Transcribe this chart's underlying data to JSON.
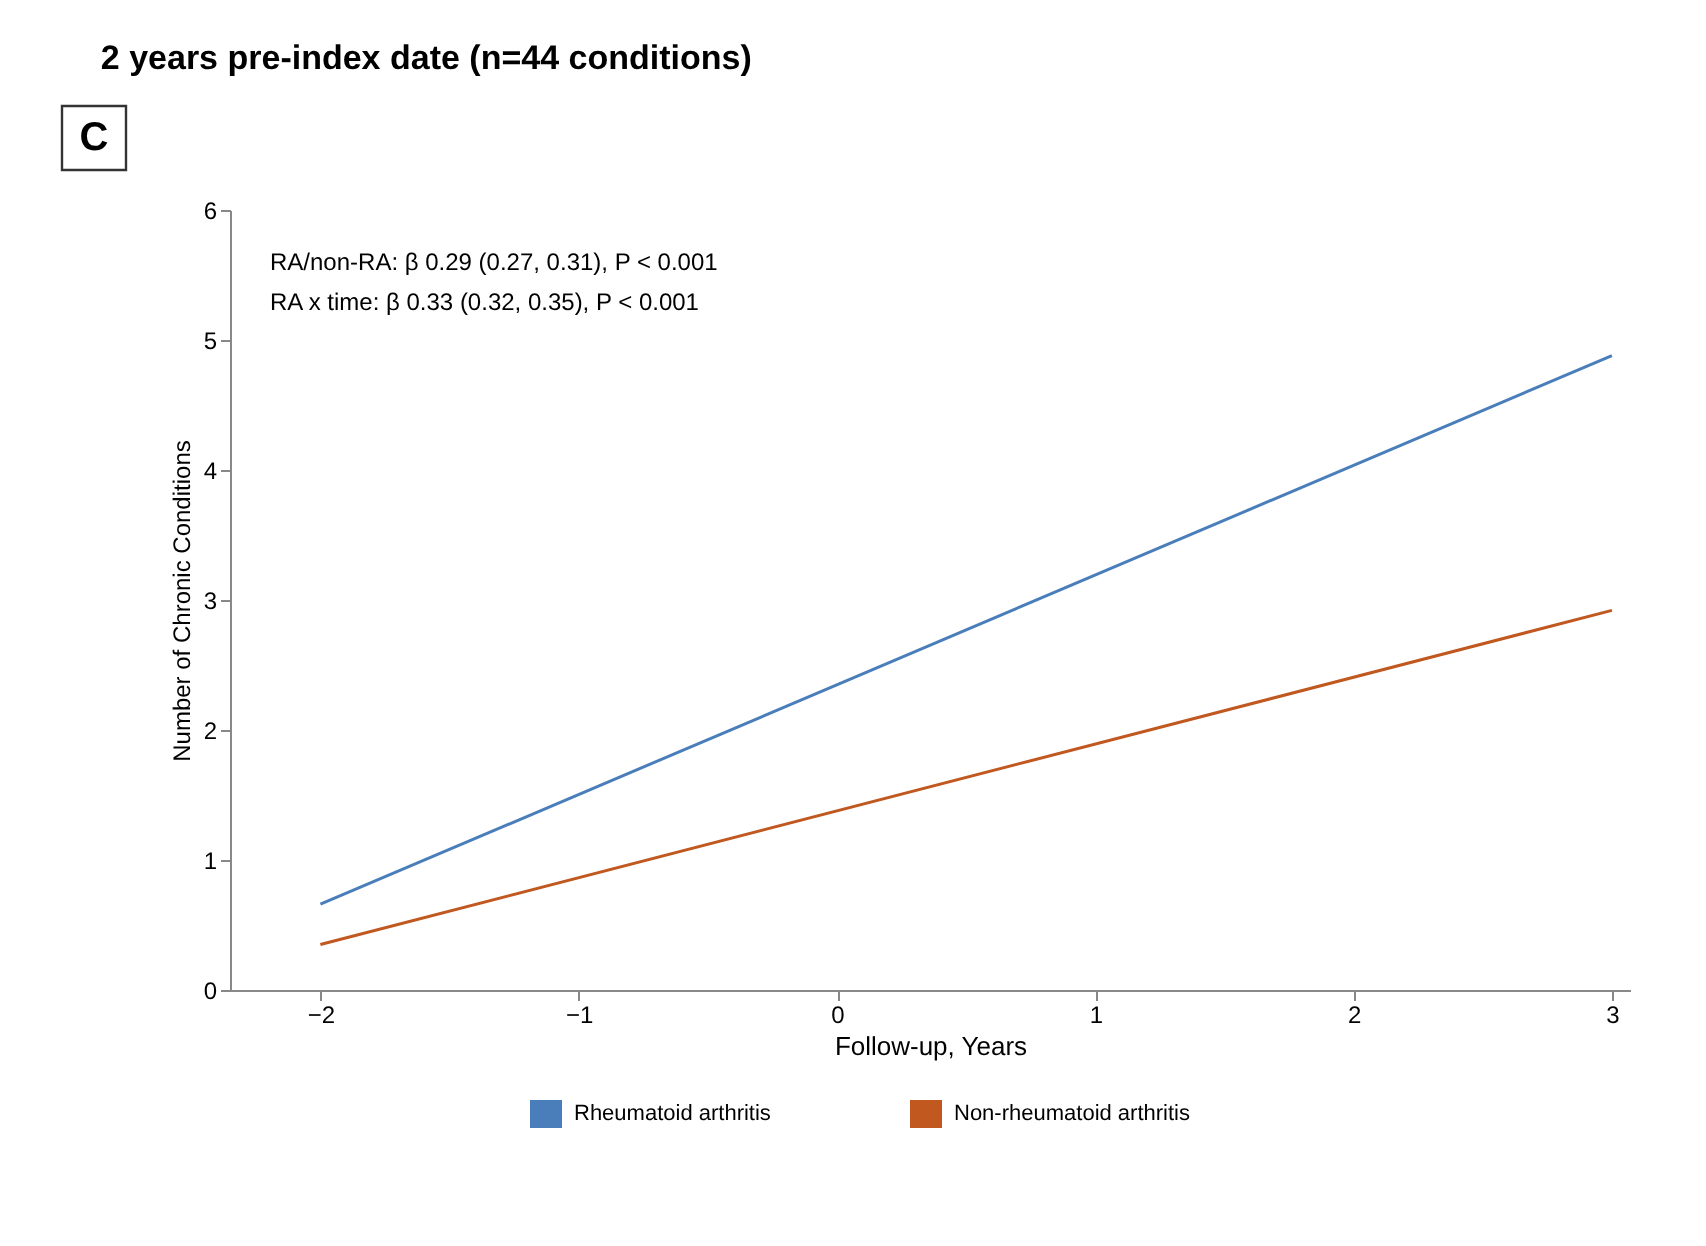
{
  "chart_data": {
    "type": "line",
    "title": "2 years pre-index date (n=44 conditions)",
    "xlabel": "Follow-up, Years",
    "ylabel": "Number of Chronic Conditions",
    "annotations": [
      "C",
      "RA/non-RA: β 0.29 (0.27, 0.31), P < 0.001",
      "RA x time: β 0.33 (0.32, 0.35), P < 0.001"
    ],
    "x": [
      -2,
      3
    ],
    "series": [
      {
        "name": "Rheumatoid arthritis",
        "color": "#4a7ebb",
        "values": [
          0.66,
          4.88
        ]
      },
      {
        "name": "Non-rheumatoid arthritis",
        "color": "#c0581f",
        "values": [
          0.35,
          2.92
        ]
      }
    ],
    "xlim": [
      -2.35,
      3.07
    ],
    "xticks": [
      -2,
      -1,
      0,
      1,
      2,
      3
    ],
    "ylim": [
      0,
      6
    ],
    "yticks": [
      0,
      1,
      2,
      3,
      4,
      5,
      6
    ],
    "grid": false,
    "legend": "bottom",
    "marker": "none",
    "line_style": "solid"
  }
}
